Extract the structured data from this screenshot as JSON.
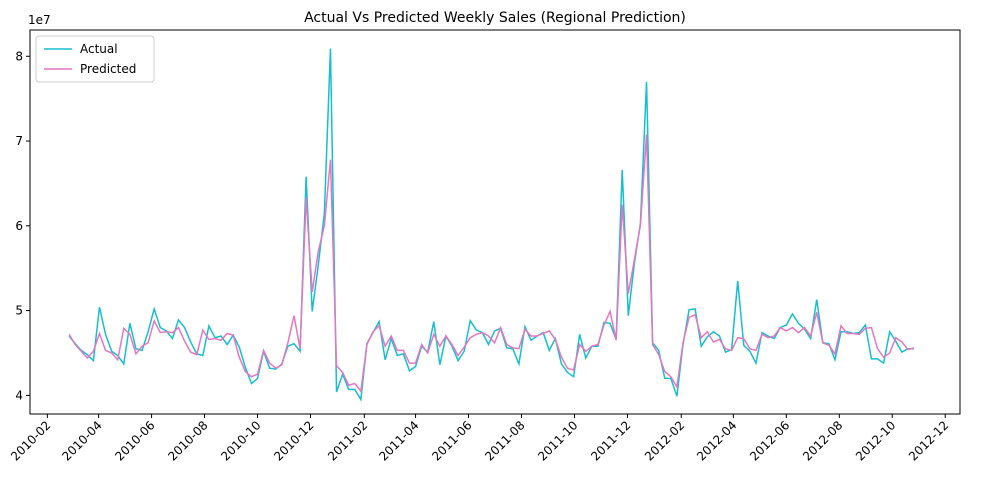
{
  "chart_data": {
    "type": "line",
    "title": "Actual Vs Predicted Weekly Sales (Regional Prediction)",
    "y_offset_label": "1e7",
    "legend": "upper left",
    "x": [
      "2010-02-26",
      "2010-03-05",
      "2010-03-12",
      "2010-03-19",
      "2010-03-26",
      "2010-04-02",
      "2010-04-09",
      "2010-04-16",
      "2010-04-23",
      "2010-04-30",
      "2010-05-07",
      "2010-05-14",
      "2010-05-21",
      "2010-05-28",
      "2010-06-04",
      "2010-06-11",
      "2010-06-18",
      "2010-06-25",
      "2010-07-02",
      "2010-07-09",
      "2010-07-16",
      "2010-07-23",
      "2010-07-30",
      "2010-08-06",
      "2010-08-13",
      "2010-08-20",
      "2010-08-27",
      "2010-09-03",
      "2010-09-10",
      "2010-09-17",
      "2010-09-24",
      "2010-10-01",
      "2010-10-08",
      "2010-10-15",
      "2010-10-22",
      "2010-10-29",
      "2010-11-05",
      "2010-11-12",
      "2010-11-19",
      "2010-11-26",
      "2010-12-03",
      "2010-12-10",
      "2010-12-17",
      "2010-12-24",
      "2010-12-31",
      "2011-01-07",
      "2011-01-14",
      "2011-01-21",
      "2011-01-28",
      "2011-02-04",
      "2011-02-11",
      "2011-02-18",
      "2011-02-25",
      "2011-03-04",
      "2011-03-11",
      "2011-03-18",
      "2011-03-25",
      "2011-04-01",
      "2011-04-08",
      "2011-04-15",
      "2011-04-22",
      "2011-04-29",
      "2011-05-06",
      "2011-05-13",
      "2011-05-20",
      "2011-05-27",
      "2011-06-03",
      "2011-06-10",
      "2011-06-17",
      "2011-06-24",
      "2011-07-01",
      "2011-07-08",
      "2011-07-15",
      "2011-07-22",
      "2011-07-29",
      "2011-08-05",
      "2011-08-12",
      "2011-08-19",
      "2011-08-26",
      "2011-09-02",
      "2011-09-09",
      "2011-09-16",
      "2011-09-23",
      "2011-09-30",
      "2011-10-07",
      "2011-10-14",
      "2011-10-21",
      "2011-10-28",
      "2011-11-04",
      "2011-11-11",
      "2011-11-18",
      "2011-11-25",
      "2011-12-02",
      "2011-12-09",
      "2011-12-16",
      "2011-12-23",
      "2011-12-30",
      "2012-01-06",
      "2012-01-13",
      "2012-01-20",
      "2012-01-27",
      "2012-02-03",
      "2012-02-10",
      "2012-02-17",
      "2012-02-24",
      "2012-03-02",
      "2012-03-09",
      "2012-03-16",
      "2012-03-23",
      "2012-03-30",
      "2012-04-06",
      "2012-04-13",
      "2012-04-20",
      "2012-04-27",
      "2012-05-04",
      "2012-05-11",
      "2012-05-18",
      "2012-05-25",
      "2012-06-01",
      "2012-06-08",
      "2012-06-15",
      "2012-06-22",
      "2012-06-29",
      "2012-07-06",
      "2012-07-13",
      "2012-07-20",
      "2012-07-27",
      "2012-08-03",
      "2012-08-10",
      "2012-08-17",
      "2012-08-24",
      "2012-08-31",
      "2012-09-07",
      "2012-09-14",
      "2012-09-21",
      "2012-09-28",
      "2012-10-05",
      "2012-10-12",
      "2012-10-19",
      "2012-10-26"
    ],
    "series": [
      {
        "name": "Actual",
        "color": "#17becf",
        "values": [
          4.7,
          4.61,
          4.53,
          4.48,
          4.41,
          5.04,
          4.72,
          4.52,
          4.47,
          4.37,
          4.85,
          4.55,
          4.53,
          4.75,
          5.02,
          4.8,
          4.76,
          4.67,
          4.89,
          4.8,
          4.63,
          4.49,
          4.47,
          4.82,
          4.68,
          4.7,
          4.6,
          4.71,
          4.57,
          4.33,
          4.14,
          4.2,
          4.52,
          4.32,
          4.31,
          4.37,
          4.58,
          4.61,
          4.52,
          6.58,
          4.99,
          5.54,
          6.15,
          8.09,
          4.04,
          4.25,
          4.07,
          4.07,
          3.95,
          4.61,
          4.74,
          4.87,
          4.42,
          4.67,
          4.47,
          4.49,
          4.29,
          4.34,
          4.58,
          4.51,
          4.87,
          4.36,
          4.7,
          4.58,
          4.41,
          4.52,
          4.88,
          4.77,
          4.74,
          4.6,
          4.76,
          4.79,
          4.56,
          4.55,
          4.37,
          4.81,
          4.65,
          4.7,
          4.74,
          4.53,
          4.67,
          4.37,
          4.27,
          4.22,
          4.72,
          4.44,
          4.58,
          4.58,
          4.86,
          4.85,
          4.66,
          6.66,
          4.94,
          5.56,
          6.03,
          7.7,
          4.62,
          4.53,
          4.2,
          4.2,
          3.99,
          4.6,
          5.01,
          5.02,
          4.58,
          4.69,
          4.75,
          4.7,
          4.51,
          4.54,
          5.35,
          4.59,
          4.52,
          4.38,
          4.74,
          4.7,
          4.67,
          4.8,
          4.83,
          4.96,
          4.85,
          4.78,
          4.67,
          5.13,
          4.62,
          4.61,
          4.42,
          4.75,
          4.75,
          4.73,
          4.74,
          4.83,
          4.43,
          4.43,
          4.38,
          4.75,
          4.64,
          4.51,
          4.55,
          4.55
        ]
      },
      {
        "name": "Predicted",
        "color": "#e377c2",
        "values": [
          4.72,
          4.6,
          4.52,
          4.44,
          4.52,
          4.73,
          4.53,
          4.5,
          4.42,
          4.79,
          4.72,
          4.49,
          4.58,
          4.62,
          4.88,
          4.74,
          4.75,
          4.74,
          4.8,
          4.64,
          4.51,
          4.48,
          4.77,
          4.66,
          4.67,
          4.65,
          4.73,
          4.71,
          4.45,
          4.28,
          4.22,
          4.25,
          4.53,
          4.38,
          4.32,
          4.36,
          4.62,
          4.94,
          4.55,
          6.33,
          5.22,
          5.7,
          6.0,
          6.78,
          4.35,
          4.27,
          4.12,
          4.14,
          4.05,
          4.6,
          4.75,
          4.82,
          4.58,
          4.7,
          4.53,
          4.53,
          4.38,
          4.38,
          4.6,
          4.5,
          4.72,
          4.58,
          4.7,
          4.6,
          4.47,
          4.57,
          4.68,
          4.72,
          4.74,
          4.7,
          4.62,
          4.8,
          4.6,
          4.56,
          4.55,
          4.78,
          4.7,
          4.7,
          4.73,
          4.76,
          4.66,
          4.45,
          4.32,
          4.3,
          4.6,
          4.52,
          4.58,
          4.6,
          4.83,
          4.99,
          4.65,
          6.25,
          5.2,
          5.6,
          6.01,
          7.08,
          4.6,
          4.48,
          4.28,
          4.22,
          4.1,
          4.62,
          4.92,
          4.95,
          4.68,
          4.75,
          4.63,
          4.66,
          4.55,
          4.53,
          4.68,
          4.67,
          4.55,
          4.53,
          4.72,
          4.68,
          4.7,
          4.8,
          4.76,
          4.8,
          4.74,
          4.8,
          4.7,
          4.98,
          4.62,
          4.59,
          4.49,
          4.82,
          4.73,
          4.73,
          4.72,
          4.79,
          4.8,
          4.55,
          4.45,
          4.5,
          4.68,
          4.63,
          4.54,
          4.56
        ]
      }
    ],
    "xlim": [
      "2010-01-12",
      "2012-12-18"
    ],
    "xticks": [
      "2010-02",
      "2010-04",
      "2010-06",
      "2010-08",
      "2010-10",
      "2010-12",
      "2011-02",
      "2011-04",
      "2011-06",
      "2011-08",
      "2011-10",
      "2011-12",
      "2012-02",
      "2012-04",
      "2012-06",
      "2012-08",
      "2012-10",
      "2012-12"
    ],
    "ylim": [
      3.78,
      8.31
    ],
    "yticks": [
      4,
      5,
      6,
      7,
      8
    ]
  }
}
